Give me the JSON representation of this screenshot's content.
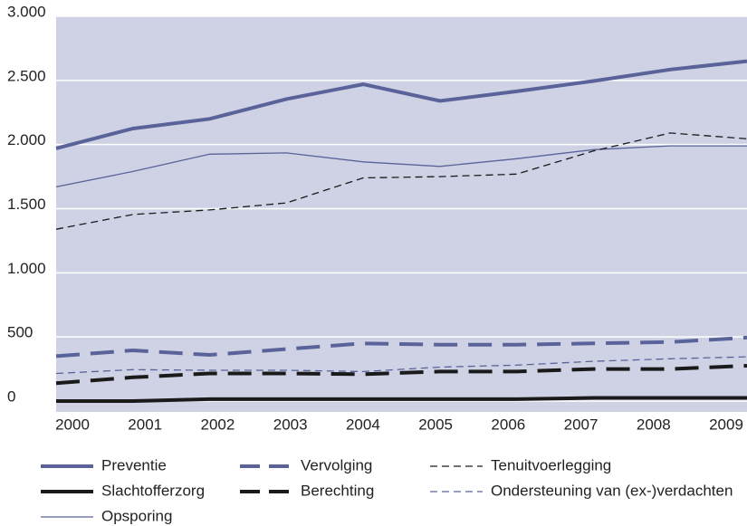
{
  "chart_data": {
    "type": "line",
    "categories": [
      "2000",
      "2001",
      "2002",
      "2003",
      "2004",
      "2005",
      "2006",
      "2007",
      "2008",
      "2009"
    ],
    "ylim": [
      0,
      3000
    ],
    "yticks": [
      0,
      500,
      {
        "value": 1000,
        "label": "1.000"
      },
      {
        "value": 1500,
        "label": "1.500"
      },
      {
        "value": 2000,
        "label": "2.000"
      },
      {
        "value": 2500,
        "label": "2.500"
      },
      {
        "value": 3000,
        "label": "3.000"
      }
    ],
    "grid": true,
    "legend": "bottom",
    "series": [
      {
        "name": "Preventie",
        "color": "#5a6399",
        "style": "solid",
        "weight": "thick",
        "values": [
          1970,
          2125,
          2200,
          2355,
          2470,
          2340,
          2415,
          2495,
          2585,
          2650
        ]
      },
      {
        "name": "Slachtofferzorg",
        "color": "#1a1a1a",
        "style": "solid",
        "weight": "thick",
        "values": [
          0,
          0,
          15,
          15,
          15,
          15,
          15,
          25,
          25,
          25
        ]
      },
      {
        "name": "Opsporing",
        "color": "#5a6399",
        "style": "solid",
        "weight": "thin",
        "values": [
          1670,
          1790,
          1925,
          1935,
          1865,
          1830,
          1890,
          1960,
          1990,
          1990
        ]
      },
      {
        "name": "Vervolging",
        "color": "#5a6399",
        "style": "dashed",
        "weight": "thick",
        "values": [
          350,
          395,
          360,
          405,
          450,
          440,
          440,
          450,
          460,
          495
        ]
      },
      {
        "name": "Berechting",
        "color": "#1a1a1a",
        "style": "dashed",
        "weight": "thick",
        "values": [
          140,
          185,
          215,
          215,
          210,
          230,
          230,
          250,
          250,
          275
        ]
      },
      {
        "name": "Tenuitvoerlegging",
        "color": "#1a1a1a",
        "style": "dashed",
        "weight": "thin",
        "values": [
          1340,
          1455,
          1490,
          1545,
          1740,
          1750,
          1770,
          1950,
          2090,
          2045
        ]
      },
      {
        "name": "Ondersteuning van (ex-)verdachten",
        "color": "#5a6399",
        "style": "dashed",
        "weight": "thin",
        "values": [
          215,
          245,
          240,
          240,
          230,
          265,
          280,
          310,
          330,
          345
        ]
      }
    ]
  }
}
